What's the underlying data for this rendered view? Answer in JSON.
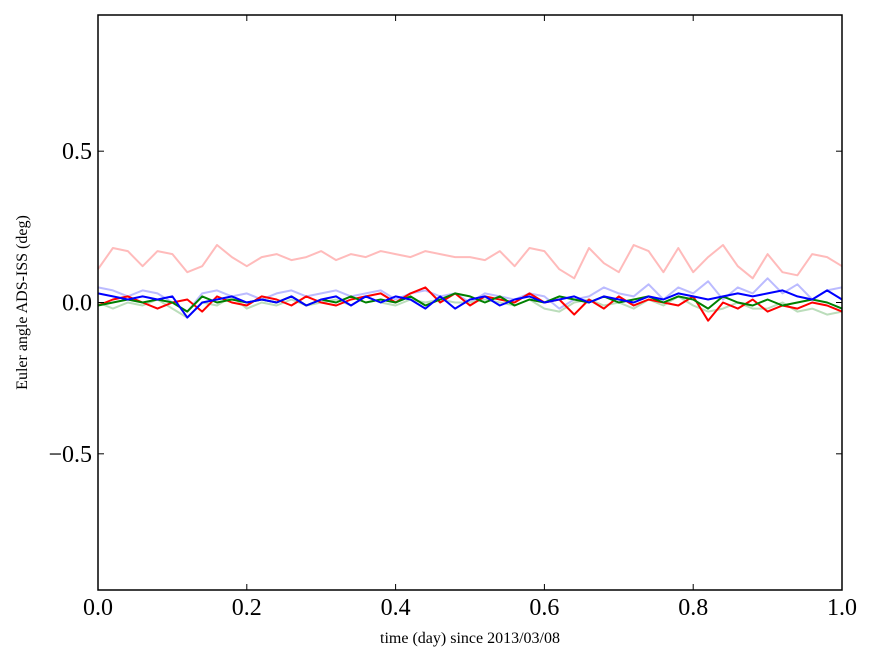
{
  "chart_data": {
    "type": "line",
    "title": "",
    "xlabel": "time (day) since 2013/03/08",
    "ylabel": "Euler angle ADS-ISS (deg)",
    "xlim": [
      0.0,
      1.0
    ],
    "ylim": [
      -0.95,
      0.95
    ],
    "xticks": [
      "0.0",
      "0.2",
      "0.4",
      "0.6",
      "0.8",
      "1.0"
    ],
    "xtick_values": [
      0.0,
      0.2,
      0.4,
      0.6,
      0.8,
      1.0
    ],
    "yticks": [
      "−0.5",
      "0.0",
      "0.5"
    ],
    "ytick_values": [
      -0.5,
      0.0,
      0.5
    ],
    "grid": false,
    "x": [
      0.0,
      0.02,
      0.04,
      0.06,
      0.08,
      0.1,
      0.12,
      0.14,
      0.16,
      0.18,
      0.2,
      0.22,
      0.24,
      0.26,
      0.28,
      0.3,
      0.32,
      0.34,
      0.36,
      0.38,
      0.4,
      0.42,
      0.44,
      0.46,
      0.48,
      0.5,
      0.52,
      0.54,
      0.56,
      0.58,
      0.6,
      0.62,
      0.64,
      0.66,
      0.68,
      0.7,
      0.72,
      0.74,
      0.76,
      0.78,
      0.8,
      0.82,
      0.84,
      0.86,
      0.88,
      0.9,
      0.92,
      0.94,
      0.96,
      0.98,
      1.0
    ],
    "series": [
      {
        "color": "#ffbbbb",
        "values": [
          0.11,
          0.18,
          0.17,
          0.12,
          0.17,
          0.16,
          0.1,
          0.12,
          0.19,
          0.15,
          0.12,
          0.15,
          0.16,
          0.14,
          0.15,
          0.17,
          0.14,
          0.16,
          0.15,
          0.17,
          0.16,
          0.15,
          0.17,
          0.16,
          0.15,
          0.15,
          0.14,
          0.17,
          0.12,
          0.18,
          0.17,
          0.11,
          0.08,
          0.18,
          0.13,
          0.1,
          0.19,
          0.17,
          0.1,
          0.18,
          0.1,
          0.15,
          0.19,
          0.12,
          0.08,
          0.16,
          0.1,
          0.09,
          0.16,
          0.15,
          0.12
        ]
      },
      {
        "color": "#bbbbff",
        "values": [
          0.05,
          0.04,
          0.02,
          0.04,
          0.03,
          0.0,
          -0.03,
          0.03,
          0.04,
          0.02,
          0.03,
          0.01,
          0.03,
          0.04,
          0.02,
          0.03,
          0.04,
          0.02,
          0.03,
          0.04,
          0.01,
          0.03,
          0.04,
          0.02,
          0.03,
          0.0,
          0.03,
          0.02,
          0.01,
          0.03,
          0.02,
          -0.02,
          0.01,
          0.02,
          0.05,
          0.03,
          0.02,
          0.06,
          0.01,
          0.05,
          0.03,
          0.07,
          0.01,
          0.05,
          0.03,
          0.08,
          0.03,
          0.06,
          0.01,
          0.04,
          0.05
        ]
      },
      {
        "color": "#bbddbb",
        "values": [
          0.0,
          -0.02,
          0.0,
          -0.01,
          0.01,
          -0.02,
          -0.05,
          0.0,
          -0.01,
          0.02,
          -0.02,
          0.0,
          -0.01,
          0.01,
          -0.01,
          0.0,
          0.01,
          -0.01,
          0.02,
          0.0,
          -0.01,
          0.01,
          0.0,
          0.01,
          0.0,
          0.0,
          0.01,
          0.0,
          -0.01,
          0.01,
          -0.02,
          -0.03,
          0.0,
          0.01,
          -0.01,
          0.0,
          -0.02,
          0.01,
          -0.01,
          0.02,
          -0.01,
          -0.03,
          -0.02,
          0.0,
          -0.02,
          -0.02,
          0.0,
          -0.03,
          -0.02,
          -0.04,
          -0.03
        ]
      },
      {
        "color": "#ff0000",
        "values": [
          -0.01,
          0.01,
          0.02,
          0.0,
          -0.02,
          0.0,
          0.01,
          -0.03,
          0.02,
          0.0,
          -0.01,
          0.02,
          0.01,
          -0.01,
          0.02,
          0.0,
          -0.01,
          0.01,
          0.02,
          0.03,
          0.0,
          0.03,
          0.05,
          0.0,
          0.03,
          -0.01,
          0.02,
          0.01,
          0.0,
          0.03,
          0.0,
          0.01,
          -0.04,
          0.01,
          -0.02,
          0.02,
          -0.01,
          0.01,
          0.0,
          -0.01,
          0.02,
          -0.06,
          0.0,
          -0.02,
          0.01,
          -0.03,
          -0.01,
          -0.02,
          0.0,
          -0.01,
          -0.03
        ]
      },
      {
        "color": "#008000",
        "values": [
          -0.01,
          0.0,
          0.01,
          0.0,
          0.01,
          0.0,
          -0.03,
          0.02,
          0.0,
          0.01,
          0.0,
          0.01,
          0.0,
          0.02,
          -0.01,
          0.01,
          0.0,
          0.02,
          0.0,
          0.01,
          0.0,
          0.02,
          -0.01,
          0.01,
          0.03,
          0.02,
          0.0,
          0.02,
          -0.01,
          0.01,
          0.0,
          0.02,
          0.01,
          0.0,
          0.02,
          0.0,
          0.01,
          0.02,
          0.0,
          0.02,
          0.01,
          -0.02,
          0.02,
          0.0,
          -0.01,
          0.01,
          -0.01,
          0.0,
          0.01,
          0.0,
          -0.02
        ]
      },
      {
        "color": "#0000ff",
        "values": [
          0.03,
          0.02,
          0.01,
          0.02,
          0.01,
          0.02,
          -0.05,
          0.0,
          0.01,
          0.02,
          0.0,
          0.01,
          0.0,
          0.02,
          -0.01,
          0.01,
          0.02,
          -0.01,
          0.02,
          0.0,
          0.02,
          0.01,
          -0.02,
          0.02,
          -0.02,
          0.01,
          0.02,
          -0.01,
          0.01,
          0.02,
          0.0,
          0.01,
          0.02,
          0.0,
          0.02,
          0.01,
          0.0,
          0.02,
          0.01,
          0.03,
          0.02,
          0.01,
          0.02,
          0.03,
          0.02,
          0.03,
          0.04,
          0.02,
          0.01,
          0.04,
          0.01
        ]
      }
    ]
  }
}
